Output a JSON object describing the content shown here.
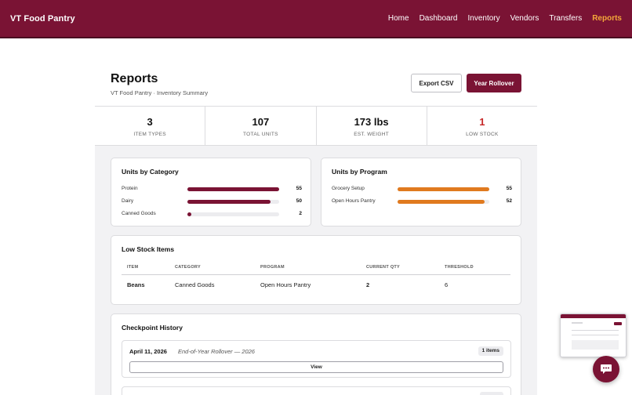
{
  "app": {
    "brand": "VT Food Pantry"
  },
  "nav": {
    "items": [
      {
        "label": "Home",
        "active": false
      },
      {
        "label": "Dashboard",
        "active": false
      },
      {
        "label": "Inventory",
        "active": false
      },
      {
        "label": "Vendors",
        "active": false
      },
      {
        "label": "Transfers",
        "active": false
      },
      {
        "label": "Reports",
        "active": true
      }
    ]
  },
  "header": {
    "title": "Reports",
    "subtitle": "VT Food Pantry · Inventory Summary",
    "export_label": "Export CSV",
    "rollover_label": "Year Rollover"
  },
  "stats": [
    {
      "value": "3",
      "label": "ITEM TYPES",
      "alert": false
    },
    {
      "value": "107",
      "label": "TOTAL UNITS",
      "alert": false
    },
    {
      "value": "173 lbs",
      "label": "EST. WEIGHT",
      "alert": false
    },
    {
      "value": "1",
      "label": "LOW STOCK",
      "alert": true
    }
  ],
  "units_by_category": {
    "title": "Units by Category",
    "color": "#7a1334",
    "items": [
      {
        "label": "Protein",
        "value": 55
      },
      {
        "label": "Dairy",
        "value": 50
      },
      {
        "label": "Canned Goods",
        "value": 2
      }
    ]
  },
  "units_by_program": {
    "title": "Units by Program",
    "color": "#e07a1f",
    "items": [
      {
        "label": "Grocery Setup",
        "value": 55
      },
      {
        "label": "Open Hours Pantry",
        "value": 52
      }
    ]
  },
  "low_stock": {
    "title": "Low Stock Items",
    "columns": [
      "ITEM",
      "CATEGORY",
      "PROGRAM",
      "CURRENT QTY",
      "THRESHOLD"
    ],
    "rows": [
      {
        "item": "Beans",
        "category": "Canned Goods",
        "program": "Open Hours Pantry",
        "current_qty": "2",
        "threshold": "6"
      }
    ]
  },
  "checkpoints": {
    "title": "Checkpoint History",
    "items": [
      {
        "date": "April 11, 2026",
        "description": "End-of-Year Rollover — 2026",
        "badge": "1 items",
        "view_label": "View"
      }
    ]
  },
  "colors": {
    "brand": "#7a1334",
    "accent": "#f4a83a",
    "alert": "#c62828"
  }
}
